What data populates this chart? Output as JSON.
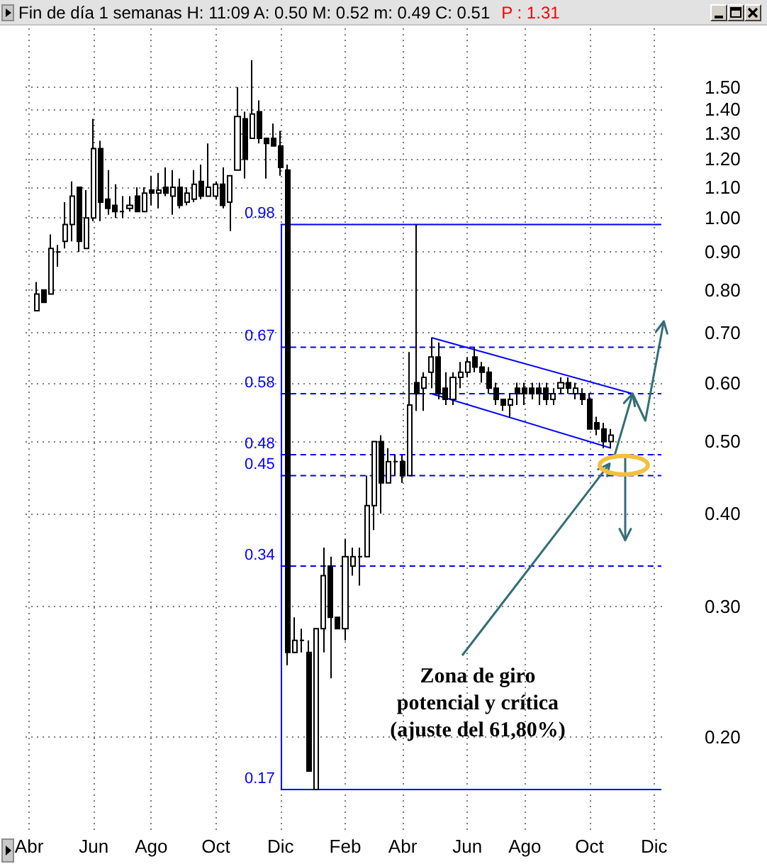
{
  "chart_data": {
    "type": "candlestick",
    "title": "Fin de día 1 semanas H: 11:09 A: 0.50 M: 0.52 m: 0.49 C: 0.51",
    "subtitle": "P : 1.31",
    "annotations": [
      "Zona de giro potencial y crítica (ajuste del 61,80%)"
    ],
    "categories": [
      "Abr",
      null,
      null,
      null,
      null,
      null,
      null,
      null,
      null,
      "Jun",
      null,
      null,
      null,
      null,
      null,
      null,
      null,
      "Ago",
      null,
      null,
      null,
      null,
      null,
      null,
      null,
      null,
      "Oct",
      null,
      null,
      null,
      null,
      null,
      null,
      null,
      null,
      "Dic",
      null,
      null,
      null,
      null,
      null,
      null,
      null,
      null,
      "Feb",
      null,
      null,
      null,
      null,
      null,
      null,
      null,
      "Abr",
      null,
      null,
      null,
      null,
      null,
      null,
      null,
      null,
      "Jun",
      null,
      null,
      null,
      null,
      null,
      null,
      null,
      "Ago",
      null,
      null,
      null,
      null,
      null,
      null,
      null,
      null,
      "Oct",
      null,
      null,
      null,
      null,
      null,
      null,
      null,
      null,
      "Dic",
      null
    ],
    "color": "#000000",
    "ohlc": [
      null,
      [
        0.75,
        0.82,
        0.75,
        0.79
      ],
      [
        0.8,
        0.8,
        0.77,
        0.77
      ],
      [
        0.79,
        0.95,
        0.79,
        0.91
      ],
      [
        0.9,
        0.92,
        0.86,
        0.9
      ],
      [
        0.93,
        1.05,
        0.91,
        0.98
      ],
      [
        0.98,
        1.12,
        0.93,
        1.07
      ],
      [
        1.1,
        1.1,
        0.9,
        0.93
      ],
      [
        0.91,
        1.09,
        0.91,
        1.0
      ],
      [
        1.0,
        1.36,
        0.99,
        1.24
      ],
      [
        1.24,
        1.27,
        0.99,
        1.05
      ],
      [
        1.06,
        1.16,
        1.01,
        1.03
      ],
      [
        1.04,
        1.11,
        1.0,
        1.02
      ],
      [
        1.02,
        1.07,
        1.0,
        1.02
      ],
      [
        1.03,
        1.07,
        1.02,
        1.04
      ],
      [
        1.07,
        1.1,
        1.02,
        1.02
      ],
      [
        1.02,
        1.1,
        1.02,
        1.08
      ],
      [
        1.09,
        1.14,
        1.04,
        1.08
      ],
      [
        1.08,
        1.15,
        1.03,
        1.09
      ],
      [
        1.1,
        1.17,
        1.07,
        1.08
      ],
      [
        1.07,
        1.16,
        1.01,
        1.1
      ],
      [
        1.1,
        1.13,
        1.03,
        1.04
      ],
      [
        1.05,
        1.1,
        1.04,
        1.08
      ],
      [
        1.06,
        1.16,
        1.05,
        1.11
      ],
      [
        1.12,
        1.18,
        1.06,
        1.07
      ],
      [
        1.07,
        1.26,
        1.07,
        1.1
      ],
      [
        1.07,
        1.12,
        1.06,
        1.11
      ],
      [
        1.11,
        1.17,
        1.03,
        1.04
      ],
      [
        1.05,
        1.14,
        0.96,
        1.14
      ],
      [
        1.16,
        1.5,
        1.16,
        1.37
      ],
      [
        1.36,
        1.39,
        1.13,
        1.2
      ],
      [
        1.28,
        1.63,
        1.28,
        1.38
      ],
      [
        1.39,
        1.44,
        1.26,
        1.28
      ],
      [
        1.28,
        1.28,
        1.13,
        1.26
      ],
      [
        1.28,
        1.34,
        1.25,
        1.25
      ],
      [
        1.25,
        1.31,
        1.14,
        1.17
      ],
      [
        1.16,
        1.18,
        0.25,
        0.26
      ],
      [
        0.26,
        0.29,
        0.26,
        0.27
      ],
      [
        0.27,
        0.28,
        0.26,
        0.27
      ],
      [
        0.26,
        0.27,
        0.18,
        0.18
      ],
      [
        0.17,
        0.28,
        0.17,
        0.28
      ],
      [
        0.28,
        0.36,
        0.26,
        0.33
      ],
      [
        0.34,
        0.35,
        0.24,
        0.29
      ],
      [
        0.29,
        0.29,
        0.28,
        0.28
      ],
      [
        0.28,
        0.37,
        0.27,
        0.35
      ],
      [
        0.34,
        0.36,
        0.33,
        0.35
      ],
      [
        0.35,
        0.36,
        0.32,
        0.35
      ],
      [
        0.35,
        0.45,
        0.35,
        0.41
      ],
      [
        0.41,
        0.5,
        0.38,
        0.5
      ],
      [
        0.5,
        0.51,
        0.4,
        0.44
      ],
      [
        0.44,
        0.49,
        0.44,
        0.47
      ],
      [
        0.47,
        0.48,
        0.45,
        0.47
      ],
      [
        0.47,
        0.48,
        0.44,
        0.45
      ],
      [
        0.45,
        0.66,
        0.45,
        0.56
      ],
      [
        0.6,
        0.98,
        0.55,
        0.58
      ],
      [
        0.59,
        0.62,
        0.55,
        0.61
      ],
      [
        0.62,
        0.69,
        0.59,
        0.65
      ],
      [
        0.65,
        0.68,
        0.57,
        0.58
      ],
      [
        0.59,
        0.62,
        0.56,
        0.57
      ],
      [
        0.57,
        0.62,
        0.56,
        0.61
      ],
      [
        0.61,
        0.64,
        0.59,
        0.62
      ],
      [
        0.62,
        0.65,
        0.61,
        0.64
      ],
      [
        0.65,
        0.67,
        0.62,
        0.63
      ],
      [
        0.63,
        0.64,
        0.6,
        0.62
      ],
      [
        0.62,
        0.63,
        0.58,
        0.59
      ],
      [
        0.59,
        0.6,
        0.56,
        0.57
      ],
      [
        0.57,
        0.57,
        0.55,
        0.56
      ],
      [
        0.56,
        0.58,
        0.54,
        0.57
      ],
      [
        0.59,
        0.6,
        0.56,
        0.58
      ],
      [
        0.59,
        0.6,
        0.56,
        0.58
      ],
      [
        0.59,
        0.6,
        0.57,
        0.58
      ],
      [
        0.59,
        0.6,
        0.56,
        0.58
      ],
      [
        0.59,
        0.6,
        0.56,
        0.57
      ],
      [
        0.57,
        0.59,
        0.56,
        0.58
      ],
      [
        0.59,
        0.61,
        0.58,
        0.6
      ],
      [
        0.6,
        0.61,
        0.58,
        0.59
      ],
      [
        0.58,
        0.6,
        0.57,
        0.59
      ],
      [
        0.58,
        0.59,
        0.56,
        0.57
      ],
      [
        0.57,
        0.58,
        0.52,
        0.52
      ],
      [
        0.53,
        0.54,
        0.51,
        0.52
      ],
      [
        0.52,
        0.53,
        0.49,
        0.5
      ],
      [
        0.5,
        0.52,
        0.49,
        0.51
      ],
      null,
      null,
      null,
      null,
      null,
      null,
      null
    ],
    "series": [
      {
        "type": "line",
        "name": "0.98",
        "color": "#0000ff",
        "line_style": "solid",
        "values": [
          null,
          null,
          null,
          null,
          null,
          null,
          null,
          null,
          null,
          null,
          null,
          null,
          null,
          null,
          null,
          null,
          null,
          null,
          null,
          null,
          null,
          null,
          null,
          null,
          null,
          null,
          null,
          null,
          null,
          null,
          null,
          null,
          null,
          null,
          null,
          0.98,
          null,
          null,
          null,
          null,
          null,
          null,
          null,
          null,
          null,
          null,
          null,
          null,
          null,
          null,
          null,
          null,
          null,
          null,
          null,
          null,
          null,
          null,
          null,
          null,
          null,
          null,
          null,
          null,
          null,
          null,
          null,
          null,
          null,
          null,
          null,
          null,
          null,
          null,
          null,
          null,
          null,
          null,
          null,
          null,
          null,
          null,
          null,
          null,
          null,
          null,
          null,
          null,
          0.98
        ]
      },
      {
        "type": "line",
        "name": "0.67",
        "color": "#0000ff",
        "line_style": "dashed",
        "values": [
          null,
          null,
          null,
          null,
          null,
          null,
          null,
          null,
          null,
          null,
          null,
          null,
          null,
          null,
          null,
          null,
          null,
          null,
          null,
          null,
          null,
          null,
          null,
          null,
          null,
          null,
          null,
          null,
          null,
          null,
          null,
          null,
          null,
          null,
          null,
          0.67,
          null,
          null,
          null,
          null,
          null,
          null,
          null,
          null,
          null,
          null,
          null,
          null,
          null,
          null,
          null,
          null,
          null,
          null,
          null,
          null,
          null,
          null,
          null,
          null,
          null,
          null,
          null,
          null,
          null,
          null,
          null,
          null,
          null,
          null,
          null,
          null,
          null,
          null,
          null,
          null,
          null,
          null,
          null,
          null,
          null,
          null,
          null,
          null,
          null,
          null,
          null,
          null,
          0.67
        ]
      },
      {
        "type": "line",
        "name": "0.58",
        "color": "#0000ff",
        "line_style": "dashed",
        "values": [
          null,
          null,
          null,
          null,
          null,
          null,
          null,
          null,
          null,
          null,
          null,
          null,
          null,
          null,
          null,
          null,
          null,
          null,
          null,
          null,
          null,
          null,
          null,
          null,
          null,
          null,
          null,
          null,
          null,
          null,
          null,
          null,
          null,
          null,
          null,
          0.58,
          null,
          null,
          null,
          null,
          null,
          null,
          null,
          null,
          null,
          null,
          null,
          null,
          null,
          null,
          null,
          null,
          null,
          null,
          null,
          null,
          null,
          null,
          null,
          null,
          null,
          null,
          null,
          null,
          null,
          null,
          null,
          null,
          null,
          null,
          null,
          null,
          null,
          null,
          null,
          null,
          null,
          null,
          null,
          null,
          null,
          null,
          null,
          null,
          null,
          null,
          null,
          null,
          0.58
        ]
      },
      {
        "type": "line",
        "name": "0.48",
        "color": "#0000ff",
        "line_style": "dashed",
        "values": [
          null,
          null,
          null,
          null,
          null,
          null,
          null,
          null,
          null,
          null,
          null,
          null,
          null,
          null,
          null,
          null,
          null,
          null,
          null,
          null,
          null,
          null,
          null,
          null,
          null,
          null,
          null,
          null,
          null,
          null,
          null,
          null,
          null,
          null,
          null,
          0.48,
          null,
          null,
          null,
          null,
          null,
          null,
          null,
          null,
          null,
          null,
          null,
          null,
          null,
          null,
          null,
          null,
          null,
          null,
          null,
          null,
          null,
          null,
          null,
          null,
          null,
          null,
          null,
          null,
          null,
          null,
          null,
          null,
          null,
          null,
          null,
          null,
          null,
          null,
          null,
          null,
          null,
          null,
          null,
          null,
          null,
          null,
          null,
          null,
          null,
          null,
          null,
          null,
          0.48
        ]
      },
      {
        "type": "line",
        "name": "0.45",
        "color": "#0000ff",
        "line_style": "dashed",
        "values": [
          null,
          null,
          null,
          null,
          null,
          null,
          null,
          null,
          null,
          null,
          null,
          null,
          null,
          null,
          null,
          null,
          null,
          null,
          null,
          null,
          null,
          null,
          null,
          null,
          null,
          null,
          null,
          null,
          null,
          null,
          null,
          null,
          null,
          null,
          null,
          0.45,
          null,
          null,
          null,
          null,
          null,
          null,
          null,
          null,
          null,
          null,
          null,
          null,
          null,
          null,
          null,
          null,
          null,
          null,
          null,
          null,
          null,
          null,
          null,
          null,
          null,
          null,
          null,
          null,
          null,
          null,
          null,
          null,
          null,
          null,
          null,
          null,
          null,
          null,
          null,
          null,
          null,
          null,
          null,
          null,
          null,
          null,
          null,
          null,
          null,
          null,
          null,
          null,
          0.45
        ]
      },
      {
        "type": "line",
        "name": "0.34",
        "color": "#0000ff",
        "line_style": "dashed",
        "values": [
          null,
          null,
          null,
          null,
          null,
          null,
          null,
          null,
          null,
          null,
          null,
          null,
          null,
          null,
          null,
          null,
          null,
          null,
          null,
          null,
          null,
          null,
          null,
          null,
          null,
          null,
          null,
          null,
          null,
          null,
          null,
          null,
          null,
          null,
          null,
          0.34,
          null,
          null,
          null,
          null,
          null,
          null,
          null,
          null,
          null,
          null,
          null,
          null,
          null,
          null,
          null,
          null,
          null,
          null,
          null,
          null,
          null,
          null,
          null,
          null,
          null,
          null,
          null,
          null,
          null,
          null,
          null,
          null,
          null,
          null,
          null,
          null,
          null,
          null,
          null,
          null,
          null,
          null,
          null,
          null,
          null,
          null,
          null,
          null,
          null,
          null,
          null,
          null,
          0.34
        ]
      },
      {
        "type": "line",
        "name": "0.17",
        "color": "#0000ff",
        "line_style": "solid",
        "values": [
          null,
          null,
          null,
          null,
          null,
          null,
          null,
          null,
          null,
          null,
          null,
          null,
          null,
          null,
          null,
          null,
          null,
          null,
          null,
          null,
          null,
          null,
          null,
          null,
          null,
          null,
          null,
          null,
          null,
          null,
          null,
          null,
          null,
          null,
          null,
          0.17,
          null,
          null,
          null,
          null,
          null,
          null,
          null,
          null,
          null,
          null,
          null,
          null,
          null,
          null,
          null,
          null,
          null,
          null,
          null,
          null,
          null,
          null,
          null,
          null,
          null,
          null,
          null,
          null,
          null,
          null,
          null,
          null,
          null,
          null,
          null,
          null,
          null,
          null,
          null,
          null,
          null,
          null,
          null,
          null,
          null,
          null,
          null,
          null,
          null,
          null,
          null,
          null,
          0.17
        ]
      },
      {
        "type": "line",
        "color": "#0000ff",
        "line_style": "solid",
        "values": [
          null,
          null,
          null,
          null,
          null,
          null,
          null,
          null,
          null,
          null,
          null,
          null,
          null,
          null,
          null,
          null,
          null,
          null,
          null,
          null,
          null,
          null,
          null,
          null,
          null,
          null,
          null,
          null,
          null,
          null,
          null,
          null,
          null,
          null,
          null,
          null,
          null,
          null,
          null,
          null,
          null,
          null,
          null,
          null,
          null,
          null,
          null,
          null,
          null,
          null,
          null,
          null,
          null,
          null,
          null,
          null,
          0.69,
          null,
          null,
          null,
          null,
          null,
          null,
          null,
          null,
          null,
          null,
          null,
          null,
          null,
          null,
          null,
          null,
          null,
          null,
          null,
          null,
          null,
          null,
          null,
          null,
          null,
          null,
          null,
          0.58,
          null,
          null,
          null,
          null
        ]
      },
      {
        "type": "line",
        "color": "#0000ff",
        "line_style": "solid",
        "values": [
          null,
          null,
          null,
          null,
          null,
          null,
          null,
          null,
          null,
          null,
          null,
          null,
          null,
          null,
          null,
          null,
          null,
          null,
          null,
          null,
          null,
          null,
          null,
          null,
          null,
          null,
          null,
          null,
          null,
          null,
          null,
          null,
          null,
          null,
          null,
          null,
          null,
          null,
          null,
          null,
          null,
          null,
          null,
          null,
          null,
          null,
          null,
          null,
          null,
          null,
          null,
          null,
          null,
          null,
          null,
          null,
          0.58,
          null,
          null,
          null,
          null,
          null,
          null,
          null,
          null,
          null,
          null,
          null,
          null,
          null,
          null,
          null,
          null,
          null,
          null,
          null,
          null,
          null,
          null,
          null,
          null,
          0.49,
          null,
          null,
          null,
          null,
          null,
          null,
          null
        ]
      }
    ],
    "ylim": [
      0.15,
      1.8
    ],
    "yticks": [
      {
        "value": 0.2,
        "label": "0.20"
      },
      {
        "value": 0.3,
        "label": "0.30"
      },
      {
        "value": 0.4,
        "label": "0.40"
      },
      {
        "value": 0.5,
        "label": "0.50"
      },
      {
        "value": 0.6,
        "label": "0.60"
      },
      {
        "value": 0.7,
        "label": "0.70"
      },
      {
        "value": 0.8,
        "label": "0.80"
      },
      {
        "value": 0.9,
        "label": "0.90"
      },
      {
        "value": 1.0,
        "label": "1.00"
      },
      {
        "value": 1.1,
        "label": "1.10"
      },
      {
        "value": 1.2,
        "label": "1.20"
      },
      {
        "value": 1.3,
        "label": "1.30"
      },
      {
        "value": 1.4,
        "label": "1.40"
      },
      {
        "value": 1.5,
        "label": "1.50"
      }
    ],
    "log": true,
    "grid": true
  }
}
